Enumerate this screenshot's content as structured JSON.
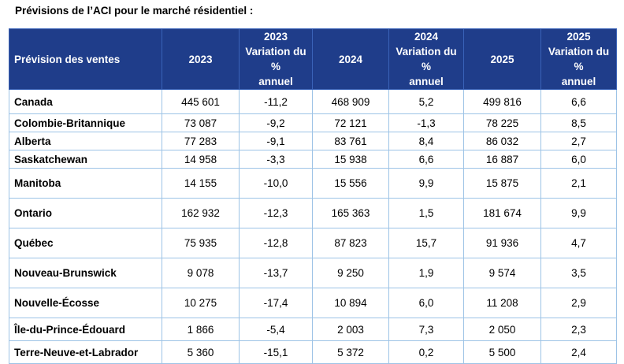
{
  "title": "Prévisions de l’ACI pour le marché résidentiel :",
  "table": {
    "headers": [
      "Prévision des ventes",
      "2023",
      "2023\nVariation du %\nannuel",
      "2024",
      "2024\nVariation du %\nannuel",
      "2025",
      "2025\nVariation du %\nannuel"
    ],
    "rows": [
      [
        "Canada",
        "445 601",
        "-11,2",
        "468 909",
        "5,2",
        "499 816",
        "6,6"
      ],
      [
        "Colombie-Britannique",
        "73 087",
        "-9,2",
        "72 121",
        "-1,3",
        "78 225",
        "8,5"
      ],
      [
        "Alberta",
        "77 283",
        "-9,1",
        "83 761",
        "8,4",
        "86 032",
        "2,7"
      ],
      [
        "Saskatchewan",
        "14 958",
        "-3,3",
        "15 938",
        "6,6",
        "16 887",
        "6,0"
      ],
      [
        "Manitoba",
        "14 155",
        "-10,0",
        "15 556",
        "9,9",
        "15 875",
        "2,1"
      ],
      [
        "Ontario",
        "162 932",
        "-12,3",
        "165 363",
        "1,5",
        "181 674",
        "9,9"
      ],
      [
        "Québec",
        "75 935",
        "-12,8",
        "87 823",
        "15,7",
        "91 936",
        "4,7"
      ],
      [
        "Nouveau-Brunswick",
        "9 078",
        "-13,7",
        "9 250",
        "1,9",
        "9 574",
        "3,5"
      ],
      [
        "Nouvelle-Écosse",
        "10 275",
        "-17,4",
        "10 894",
        "6,0",
        "11 208",
        "2,9"
      ],
      [
        "Île-du-Prince-Édouard",
        "1 866",
        "-5,4",
        "2 003",
        "7,3",
        "2 050",
        "2,3"
      ],
      [
        "Terre-Neuve-et-Labrador",
        "5 360",
        "-15,1",
        "5 372",
        "0,2",
        "5 500",
        "2,4"
      ]
    ]
  }
}
